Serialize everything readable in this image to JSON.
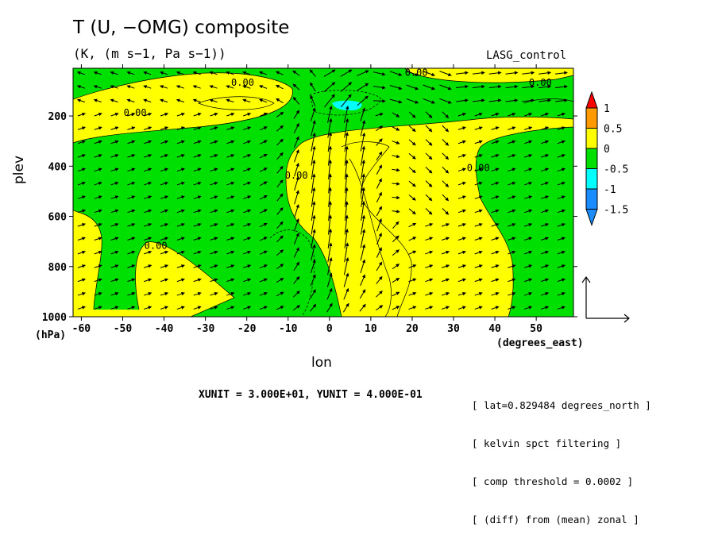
{
  "title": "T (U, −OMG) composite",
  "subtitle": "(K, (m s−1, Pa s−1))",
  "run_label": "LASG_control",
  "xlabel": "lon",
  "x_units": "(degrees_east)",
  "ylabel": "plev",
  "y_units": "(hPa)",
  "vector_unit_text": "XUNIT = 3.000E+01, YUNIT = 4.000E-01",
  "notes": [
    "[ lat=0.829484 degrees_north ]",
    "[ kelvin spct filtering ]",
    "[ comp threshold = 0.0002 ]",
    "[ (diff) from (mean) zonal ]"
  ],
  "colors": {
    "yellow": "#ffff00",
    "green": "#00e000",
    "cyan": "#00ffff",
    "orange": "#ff9900",
    "red": "#ff0000",
    "blue": "#1a8cff"
  },
  "chart_data": {
    "type": "contour",
    "title": "T (U, −OMG) composite",
    "xlabel": "lon",
    "ylabel": "plev",
    "xlim": [
      -62,
      59
    ],
    "ylim": [
      1000,
      10
    ],
    "x_ticks": [
      -60,
      -50,
      -40,
      -30,
      -20,
      -10,
      0,
      10,
      20,
      30,
      40,
      50
    ],
    "y_ticks": [
      200,
      400,
      600,
      800,
      1000
    ],
    "colorbar": {
      "levels": [
        1,
        0.5,
        0,
        -0.5,
        -1,
        -1.5
      ],
      "colors": [
        "#ff0000",
        "#ff9900",
        "#ffff00",
        "#00e000",
        "#00ffff",
        "#1a8cff",
        "#1a8cff"
      ]
    },
    "contour_labels": [
      {
        "text": "0.00",
        "lon": -42,
        "plev": 730
      },
      {
        "text": "0.00",
        "lon": -8,
        "plev": 450
      },
      {
        "text": "0.00",
        "lon": 36,
        "plev": 420
      },
      {
        "text": "0.00",
        "lon": -47,
        "plev": 200
      },
      {
        "text": "0.00",
        "lon": -21,
        "plev": 80
      },
      {
        "text": "0.00",
        "lon": 21,
        "plev": 40
      },
      {
        "text": "0.00",
        "lon": 51,
        "plev": 80
      }
    ],
    "regions": [
      {
        "value": "negative (-0.5..0)",
        "color": "green",
        "lonlat": [
          [
            -62,
            10
          ],
          [
            -62,
            130
          ],
          [
            -57,
            120
          ],
          [
            -48,
            110
          ],
          [
            -39,
            140
          ],
          [
            -33,
            160
          ],
          [
            -28,
            150
          ],
          [
            -24,
            120
          ],
          [
            -19,
            90
          ],
          [
            -12,
            60
          ],
          [
            -6,
            50
          ],
          [
            -2,
            35
          ],
          [
            1,
            28
          ],
          [
            8,
            28
          ],
          [
            14,
            20
          ],
          [
            24,
            15
          ],
          [
            28,
            10
          ]
        ]
      },
      {
        "value": "min (<-0.5)",
        "color": "cyan",
        "lon": [
          0,
          8
        ],
        "plev": [
          130,
          170
        ]
      }
    ]
  }
}
